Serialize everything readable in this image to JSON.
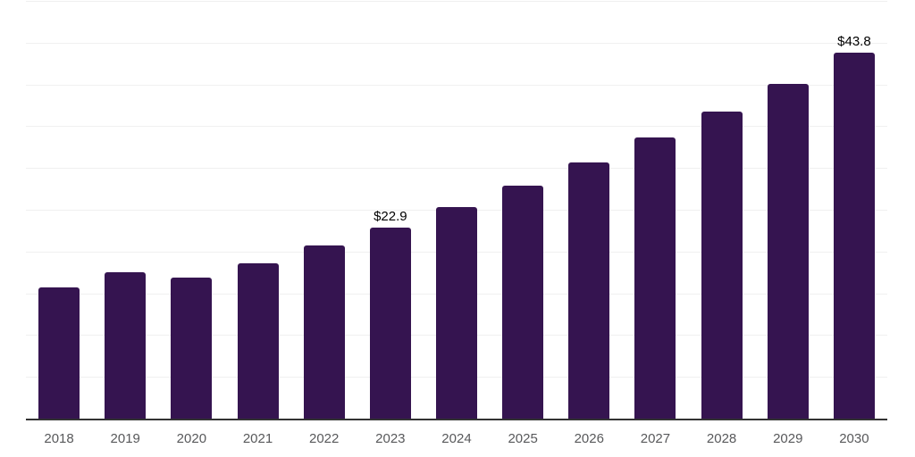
{
  "chart_data": {
    "type": "bar",
    "title": "",
    "xlabel": "",
    "ylabel": "",
    "categories": [
      "2018",
      "2019",
      "2020",
      "2021",
      "2022",
      "2023",
      "2024",
      "2025",
      "2026",
      "2027",
      "2028",
      "2029",
      "2030"
    ],
    "values": [
      15.7,
      17.5,
      16.9,
      18.6,
      20.7,
      22.9,
      25.3,
      27.9,
      30.7,
      33.7,
      36.7,
      40.1,
      43.8
    ],
    "bar_labels": [
      "",
      "",
      "",
      "",
      "",
      "$22.9",
      "",
      "",
      "",
      "",
      "",
      "",
      "$43.8"
    ],
    "ylim": [
      0,
      50
    ],
    "grid_interval": 5,
    "grid": "horizontal",
    "y_axis_tick_labels_visible": false,
    "legend": "none"
  },
  "colors": {
    "background": "#ffffff",
    "bar": "#351450",
    "gridline": "#f0f0f0",
    "axis_line": "#333333",
    "x_label": "#58595b",
    "data_label": "#000000"
  }
}
